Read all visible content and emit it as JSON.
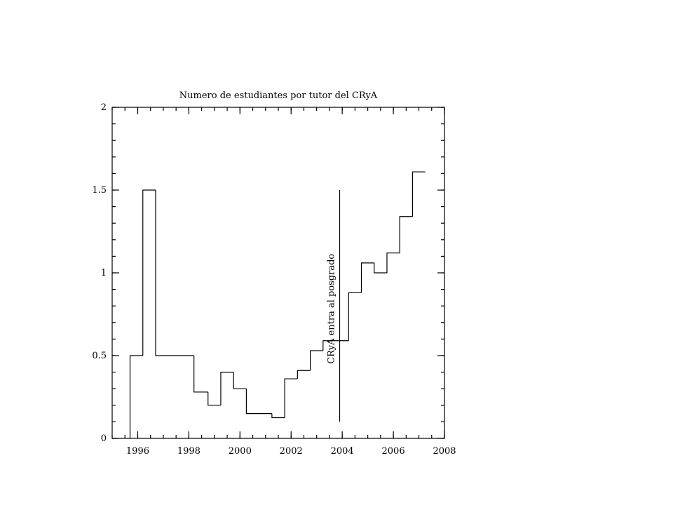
{
  "chart_data": {
    "type": "histogram",
    "title": "Numero de estudiantes por tutor del CRyA",
    "bins": [
      1995.7,
      1996.2,
      1996.7,
      1998.2,
      1998.75,
      1999.25,
      1999.75,
      2000.25,
      2001.25,
      2001.75,
      2002.25,
      2002.75,
      2003.25,
      2004.25,
      2004.75,
      2005.25,
      2005.75,
      2006.25,
      2006.75,
      2007.25
    ],
    "values": [
      0.5,
      1.5,
      0.5,
      0.28,
      0.2,
      0.4,
      0.3,
      0.15,
      0.125,
      0.36,
      0.41,
      0.53,
      0.59,
      0.88,
      1.06,
      1.0,
      1.12,
      1.34,
      1.61
    ],
    "color": "#000000",
    "xlim": [
      1995,
      2008
    ],
    "xticks": [
      1996,
      1998,
      2000,
      2002,
      2004,
      2006,
      2008
    ],
    "xminor": 0.5,
    "ylim": [
      0,
      2
    ],
    "yticks": [
      0,
      0.5,
      1,
      1.5,
      2
    ],
    "yminor": 0.1,
    "annotation": {
      "label": "CRyA entra al posgrado",
      "x": 2003.9,
      "y": [
        0.1,
        1.5
      ]
    }
  }
}
